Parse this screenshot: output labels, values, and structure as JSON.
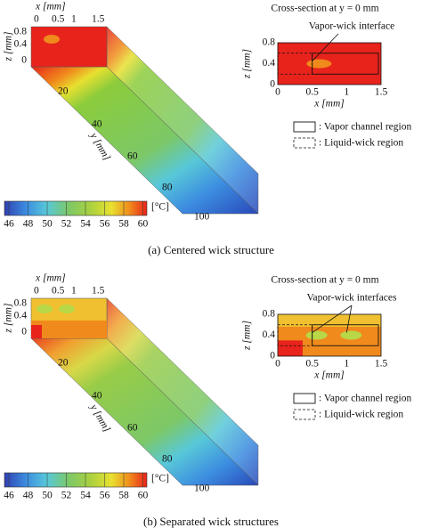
{
  "panels": [
    {
      "x_axis": {
        "label": "x [mm]",
        "ticks": [
          "0",
          "0.5",
          "1",
          "1.5"
        ]
      },
      "z_axis": {
        "label": "z [mm]",
        "ticks": [
          "0.8",
          "0.4",
          "0"
        ]
      },
      "y_axis": {
        "label": "y [mm]",
        "ticks": [
          "20",
          "40",
          "60",
          "80",
          "100"
        ]
      },
      "colorbar": {
        "ticks": [
          "46",
          "48",
          "50",
          "52",
          "54",
          "56",
          "58",
          "60"
        ],
        "unit": "[°C]"
      },
      "cross_section": {
        "title": "Cross-section at y = 0 mm",
        "annotation": "Vapor-wick interface",
        "x_label": "x [mm]",
        "z_label": "z [mm]",
        "x_ticks": [
          "0",
          "0.5",
          "1",
          "1.5"
        ],
        "z_ticks": [
          "0.8",
          "0.4",
          "0"
        ]
      },
      "legend": [
        ": Vapor channel region",
        ": Liquid-wick region"
      ],
      "caption": "(a) Centered wick structure"
    },
    {
      "x_axis": {
        "label": "x [mm]",
        "ticks": [
          "0",
          "0.5",
          "1",
          "1.5"
        ]
      },
      "z_axis": {
        "label": "z [mm]",
        "ticks": [
          "0.8",
          "0.4",
          "0"
        ]
      },
      "y_axis": {
        "label": "y [mm]",
        "ticks": [
          "20",
          "40",
          "60",
          "80",
          "100"
        ]
      },
      "colorbar": {
        "ticks": [
          "46",
          "48",
          "50",
          "52",
          "54",
          "56",
          "58",
          "60"
        ],
        "unit": "[°C]"
      },
      "cross_section": {
        "title": "Cross-section at y = 0 mm",
        "annotation": "Vapor-wick interfaces",
        "x_label": "x [mm]",
        "z_label": "z [mm]",
        "x_ticks": [
          "0",
          "0.5",
          "1",
          "1.5"
        ],
        "z_ticks": [
          "0.8",
          "0.4",
          "0"
        ]
      },
      "legend": [
        ": Vapor channel region",
        ": Liquid-wick region"
      ],
      "caption": "(b) Separated wick structures"
    }
  ]
}
